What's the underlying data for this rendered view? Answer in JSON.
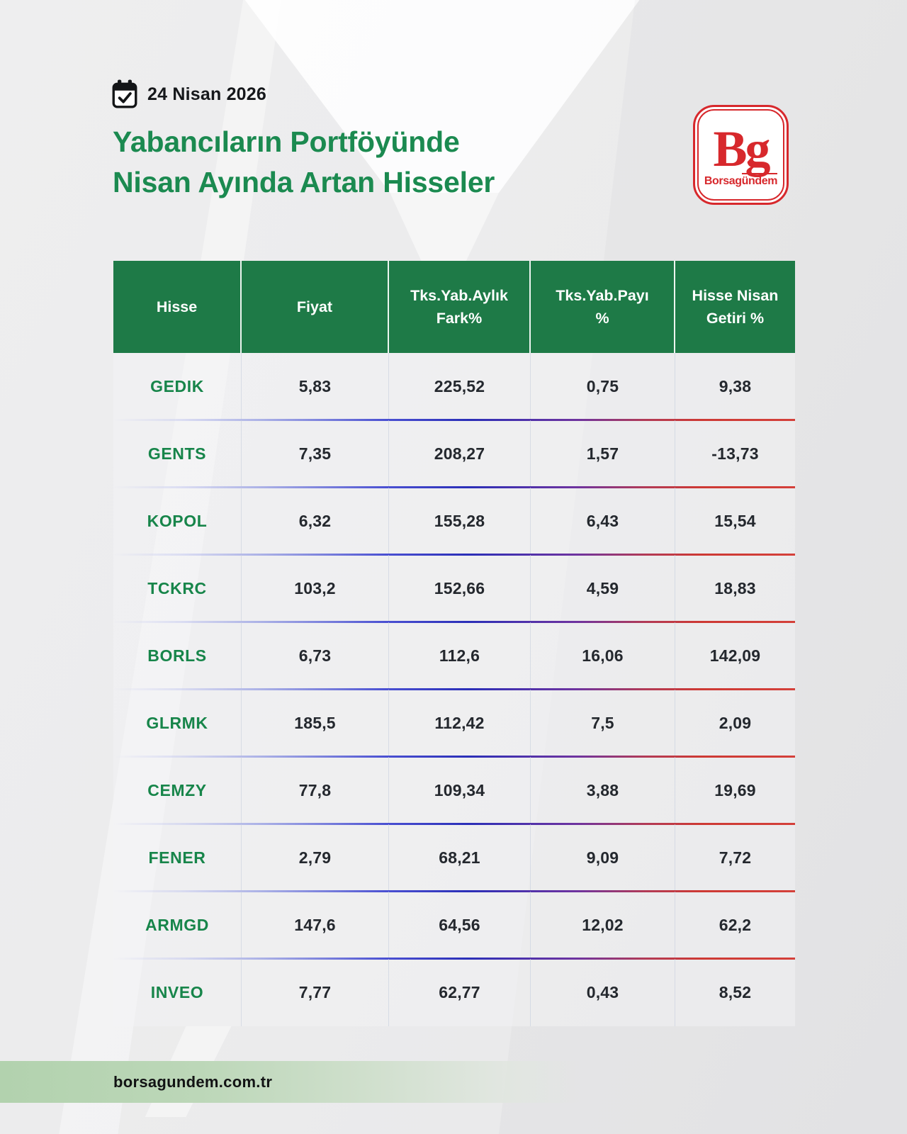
{
  "meta": {
    "date": "24 Nisan 2026"
  },
  "header": {
    "title_line1": "Yabancıların Portföyünde",
    "title_line2": "Nisan Ayında Artan Hisseler"
  },
  "logo": {
    "monogram": "Bg",
    "brand_prefix": "Borsag",
    "brand_overline": "ündem"
  },
  "table": {
    "columns": [
      {
        "lines": [
          "Hisse"
        ]
      },
      {
        "lines": [
          "Fiyat"
        ]
      },
      {
        "lines": [
          "Tks.Yab.Aylık",
          "Fark%"
        ]
      },
      {
        "lines": [
          "Tks.Yab.Payı",
          "%"
        ]
      },
      {
        "lines": [
          "Hisse Nisan",
          "Getiri %"
        ]
      }
    ],
    "rows": [
      [
        "GEDIK",
        "5,83",
        "225,52",
        "0,75",
        "9,38"
      ],
      [
        "GENTS",
        "7,35",
        "208,27",
        "1,57",
        "-13,73"
      ],
      [
        "KOPOL",
        "6,32",
        "155,28",
        "6,43",
        "15,54"
      ],
      [
        "TCKRC",
        "103,2",
        "152,66",
        "4,59",
        "18,83"
      ],
      [
        "BORLS",
        "6,73",
        "112,6",
        "16,06",
        "142,09"
      ],
      [
        "GLRMK",
        "185,5",
        "112,42",
        "7,5",
        "2,09"
      ],
      [
        "CEMZY",
        "77,8",
        "109,34",
        "3,88",
        "19,69"
      ],
      [
        "FENER",
        "2,79",
        "68,21",
        "9,09",
        "7,72"
      ],
      [
        "ARMGD",
        "147,6",
        "64,56",
        "12,02",
        "62,2"
      ],
      [
        "INVEO",
        "7,77",
        "62,77",
        "0,43",
        "8,52"
      ]
    ]
  },
  "footer": {
    "website": "borsagundem.com.tr"
  },
  "colors": {
    "header_green": "#1E7A47",
    "title_green": "#1B8A50",
    "ticker_green": "#17854A",
    "logo_red": "#D7282C",
    "separator_blue": "#2B2FB8",
    "separator_red": "#D4403A",
    "footer_green": "#B2D2AE",
    "value_text": "#24282E",
    "background": "#EBEBEC"
  },
  "chart_data": {
    "type": "table",
    "title": "Yabancıların Portföyünde Nisan Ayında Artan Hisseler",
    "date": "24 Nisan 2026",
    "columns": [
      "Hisse",
      "Fiyat",
      "Tks.Yab.Aylık Fark%",
      "Tks.Yab.Payı %",
      "Hisse Nisan Getiri %"
    ],
    "rows": [
      {
        "hisse": "GEDIK",
        "fiyat": 5.83,
        "tks_yab_aylik_fark_pct": 225.52,
        "tks_yab_payi_pct": 0.75,
        "hisse_nisan_getiri_pct": 9.38
      },
      {
        "hisse": "GENTS",
        "fiyat": 7.35,
        "tks_yab_aylik_fark_pct": 208.27,
        "tks_yab_payi_pct": 1.57,
        "hisse_nisan_getiri_pct": -13.73
      },
      {
        "hisse": "KOPOL",
        "fiyat": 6.32,
        "tks_yab_aylik_fark_pct": 155.28,
        "tks_yab_payi_pct": 6.43,
        "hisse_nisan_getiri_pct": 15.54
      },
      {
        "hisse": "TCKRC",
        "fiyat": 103.2,
        "tks_yab_aylik_fark_pct": 152.66,
        "tks_yab_payi_pct": 4.59,
        "hisse_nisan_getiri_pct": 18.83
      },
      {
        "hisse": "BORLS",
        "fiyat": 6.73,
        "tks_yab_aylik_fark_pct": 112.6,
        "tks_yab_payi_pct": 16.06,
        "hisse_nisan_getiri_pct": 142.09
      },
      {
        "hisse": "GLRMK",
        "fiyat": 185.5,
        "tks_yab_aylik_fark_pct": 112.42,
        "tks_yab_payi_pct": 7.5,
        "hisse_nisan_getiri_pct": 2.09
      },
      {
        "hisse": "CEMZY",
        "fiyat": 77.8,
        "tks_yab_aylik_fark_pct": 109.34,
        "tks_yab_payi_pct": 3.88,
        "hisse_nisan_getiri_pct": 19.69
      },
      {
        "hisse": "FENER",
        "fiyat": 2.79,
        "tks_yab_aylik_fark_pct": 68.21,
        "tks_yab_payi_pct": 9.09,
        "hisse_nisan_getiri_pct": 7.72
      },
      {
        "hisse": "ARMGD",
        "fiyat": 147.6,
        "tks_yab_aylik_fark_pct": 64.56,
        "tks_yab_payi_pct": 12.02,
        "hisse_nisan_getiri_pct": 62.2
      },
      {
        "hisse": "INVEO",
        "fiyat": 7.77,
        "tks_yab_aylik_fark_pct": 62.77,
        "tks_yab_payi_pct": 0.43,
        "hisse_nisan_getiri_pct": 8.52
      }
    ]
  }
}
